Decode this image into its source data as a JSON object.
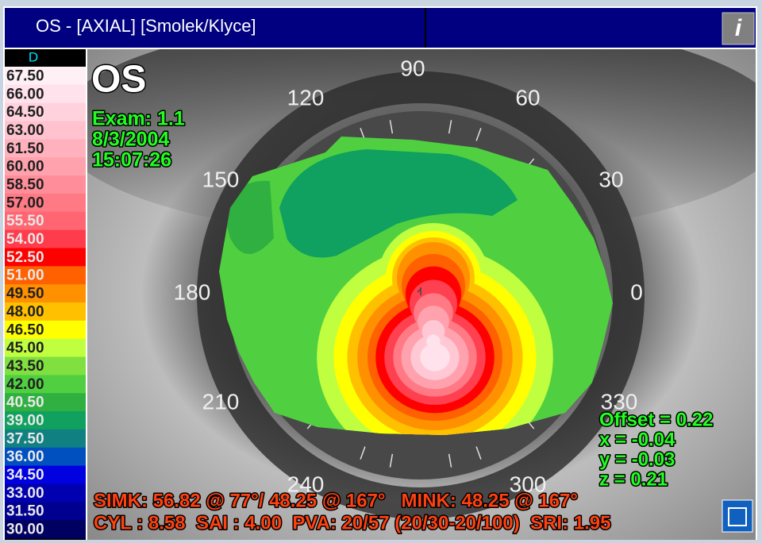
{
  "header": {
    "title": "OS - [AXIAL] [Smolek/Klyce]",
    "info_icon": "i"
  },
  "scale": {
    "unit": "D",
    "entries": [
      {
        "label": "67.50",
        "color": "#fff0f6"
      },
      {
        "label": "66.00",
        "color": "#ffe2ec"
      },
      {
        "label": "64.50",
        "color": "#ffd2de"
      },
      {
        "label": "63.00",
        "color": "#ffc2ce"
      },
      {
        "label": "61.50",
        "color": "#ffb2be"
      },
      {
        "label": "60.00",
        "color": "#ffa2ae"
      },
      {
        "label": "58.50",
        "color": "#ff8e9a"
      },
      {
        "label": "57.00",
        "color": "#ff7a84"
      },
      {
        "label": "55.50",
        "color": "#ff6672"
      },
      {
        "label": "54.00",
        "color": "#ff3c4c"
      },
      {
        "label": "52.50",
        "color": "#ff0000"
      },
      {
        "label": "51.00",
        "color": "#ff6000"
      },
      {
        "label": "49.50",
        "color": "#ff9000"
      },
      {
        "label": "48.00",
        "color": "#ffc000"
      },
      {
        "label": "46.50",
        "color": "#ffff00"
      },
      {
        "label": "45.00",
        "color": "#c0ff40"
      },
      {
        "label": "43.50",
        "color": "#80e040"
      },
      {
        "label": "42.00",
        "color": "#50d040"
      },
      {
        "label": "40.50",
        "color": "#30b040"
      },
      {
        "label": "39.00",
        "color": "#10a060"
      },
      {
        "label": "37.50",
        "color": "#108080"
      },
      {
        "label": "36.00",
        "color": "#0050c0"
      },
      {
        "label": "34.50",
        "color": "#0000e0"
      },
      {
        "label": "33.00",
        "color": "#0000b0"
      },
      {
        "label": "31.50",
        "color": "#000090"
      },
      {
        "label": "30.00",
        "color": "#000060"
      }
    ]
  },
  "map": {
    "eye": "OS",
    "exam": [
      "Exam: 1.1",
      "8/3/2004",
      "15:07:26"
    ],
    "angles": [
      "90",
      "60",
      "30",
      "0",
      "330",
      "300",
      "240",
      "210",
      "180",
      "150",
      "120"
    ],
    "offset": [
      "Offset = 0.22",
      "x = -0.04",
      "y = -0.03",
      "z = 0.21"
    ],
    "stats": [
      "SIMK: 56.82 @ 77°/ 48.25 @ 167°   MINK: 48.25 @ 167°",
      "CYL : 8.58  SAI : 4.00  PVA: 20/57 (20/30-20/100)  SRI: 1.95"
    ]
  }
}
